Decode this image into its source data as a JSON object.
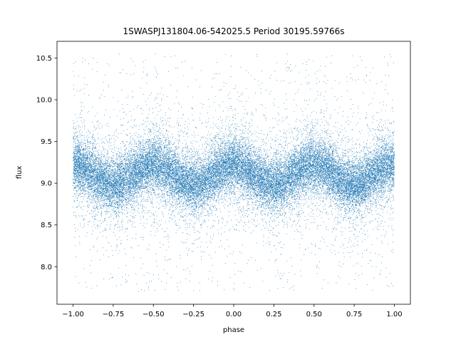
{
  "chart_data": {
    "type": "scatter",
    "title": "1SWASPJ131804.06-542025.5 Period 30195.59766s",
    "xlabel": "phase",
    "ylabel": "flux",
    "xlim": [
      -1.1,
      1.1
    ],
    "ylim": [
      7.55,
      10.7
    ],
    "xticks": [
      -1.0,
      -0.75,
      -0.5,
      -0.25,
      0.0,
      0.25,
      0.5,
      0.75,
      1.0
    ],
    "xtick_labels": [
      "−1.00",
      "−0.75",
      "−0.50",
      "−0.25",
      "0.00",
      "0.25",
      "0.50",
      "0.75",
      "1.00"
    ],
    "yticks": [
      8.0,
      8.5,
      9.0,
      9.5,
      10.0,
      10.5
    ],
    "ytick_labels": [
      "8.0",
      "8.5",
      "9.0",
      "9.5",
      "10.0",
      "10.5"
    ],
    "grid": false,
    "series": [
      {
        "color": "#1f77b4",
        "description_of_shape": "dense phase-folded light curve, sinusoidal with two cycles per phase unit",
        "x_range": [
          -1.0,
          1.0
        ],
        "mean_flux": 9.1,
        "amplitude": 0.12,
        "maxima_phase": [
          -0.5,
          0.0,
          0.5,
          1.0,
          -1.0
        ],
        "minima_phase": [
          -0.25,
          0.75,
          -0.75,
          0.25
        ],
        "scatter_std": 0.2,
        "outlier_range": [
          7.7,
          10.55
        ],
        "approx_point_count": 30000
      }
    ]
  }
}
